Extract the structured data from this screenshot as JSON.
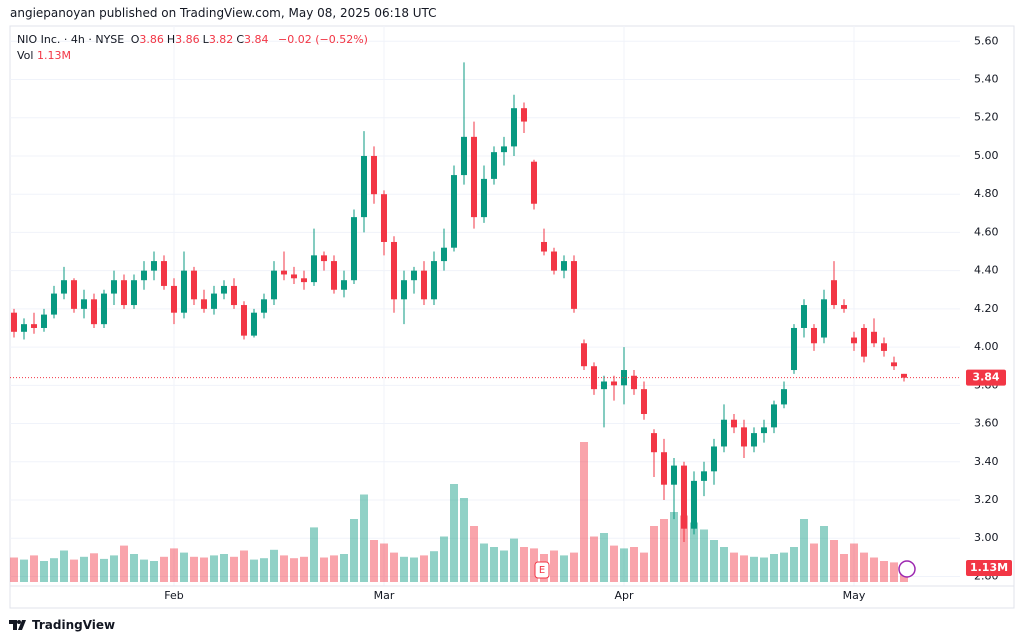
{
  "publisher": "angiepanoyan published on TradingView.com, May 08, 2025 06:18 UTC",
  "footer": "TradingView",
  "chart_data": {
    "type": "candlestick",
    "symbol": "NIO Inc. · 4h · NYSE",
    "ohlc": [
      {
        "label": "O",
        "value": 3.86
      },
      {
        "label": "H",
        "value": 3.86
      },
      {
        "label": "L",
        "value": 3.82
      },
      {
        "label": "C",
        "value": 3.84
      }
    ],
    "change": "−0.02 (−0.52%)",
    "volume_title": "Vol",
    "volume_label": "1.13M",
    "earnings_marker": "E",
    "last_price": 3.84,
    "up_color": "#089981",
    "down_color": "#f23645",
    "ylim": [
      2.75,
      5.68
    ],
    "yticks": [
      {
        "value": 2.8,
        "label": "2.80"
      },
      {
        "value": 3.0,
        "label": "3.00"
      },
      {
        "value": 3.2,
        "label": "3.20"
      },
      {
        "value": 3.4,
        "label": "3.40"
      },
      {
        "value": 3.6,
        "label": "3.60"
      },
      {
        "value": 3.8,
        "label": "3.80"
      },
      {
        "value": 4.0,
        "label": "4.00"
      },
      {
        "value": 4.2,
        "label": "4.20"
      },
      {
        "value": 4.4,
        "label": "4.40"
      },
      {
        "value": 4.6,
        "label": "4.60"
      },
      {
        "value": 4.8,
        "label": "4.80"
      },
      {
        "value": 5.0,
        "label": "5.00"
      },
      {
        "value": 5.2,
        "label": "5.20"
      },
      {
        "value": 5.4,
        "label": "5.40"
      },
      {
        "value": 5.6,
        "label": "5.60"
      }
    ],
    "xticks": [
      {
        "value": 16,
        "label": "Feb"
      },
      {
        "value": 37,
        "label": "Mar"
      },
      {
        "value": 61,
        "label": "Apr"
      },
      {
        "value": 84,
        "label": "May"
      }
    ],
    "grid": true,
    "candles": [
      [
        4.18,
        4.2,
        4.05,
        4.08
      ],
      [
        4.08,
        4.15,
        4.04,
        4.12
      ],
      [
        4.12,
        4.18,
        4.07,
        4.1
      ],
      [
        4.1,
        4.2,
        4.08,
        4.17
      ],
      [
        4.17,
        4.32,
        4.15,
        4.28
      ],
      [
        4.28,
        4.42,
        4.25,
        4.35
      ],
      [
        4.35,
        4.36,
        4.18,
        4.2
      ],
      [
        4.2,
        4.3,
        4.15,
        4.25
      ],
      [
        4.25,
        4.28,
        4.1,
        4.12
      ],
      [
        4.12,
        4.3,
        4.1,
        4.28
      ],
      [
        4.28,
        4.4,
        4.22,
        4.35
      ],
      [
        4.35,
        4.38,
        4.2,
        4.22
      ],
      [
        4.22,
        4.38,
        4.2,
        4.35
      ],
      [
        4.35,
        4.45,
        4.3,
        4.4
      ],
      [
        4.4,
        4.5,
        4.35,
        4.45
      ],
      [
        4.45,
        4.48,
        4.3,
        4.32
      ],
      [
        4.32,
        4.36,
        4.12,
        4.18
      ],
      [
        4.18,
        4.5,
        4.15,
        4.4
      ],
      [
        4.4,
        4.42,
        4.22,
        4.25
      ],
      [
        4.25,
        4.3,
        4.18,
        4.2
      ],
      [
        4.2,
        4.32,
        4.17,
        4.28
      ],
      [
        4.28,
        4.35,
        4.25,
        4.32
      ],
      [
        4.32,
        4.36,
        4.2,
        4.22
      ],
      [
        4.22,
        4.24,
        4.04,
        4.06
      ],
      [
        4.06,
        4.2,
        4.05,
        4.18
      ],
      [
        4.18,
        4.28,
        4.15,
        4.25
      ],
      [
        4.25,
        4.45,
        4.22,
        4.4
      ],
      [
        4.4,
        4.5,
        4.35,
        4.38
      ],
      [
        4.38,
        4.42,
        4.33,
        4.36
      ],
      [
        4.36,
        4.4,
        4.3,
        4.34
      ],
      [
        4.34,
        4.62,
        4.32,
        4.48
      ],
      [
        4.48,
        4.5,
        4.4,
        4.45
      ],
      [
        4.45,
        4.48,
        4.28,
        4.3
      ],
      [
        4.3,
        4.4,
        4.26,
        4.35
      ],
      [
        4.35,
        4.72,
        4.33,
        4.68
      ],
      [
        4.68,
        5.13,
        4.6,
        5.0
      ],
      [
        5.0,
        5.05,
        4.75,
        4.8
      ],
      [
        4.8,
        4.82,
        4.48,
        4.55
      ],
      [
        4.55,
        4.58,
        4.18,
        4.25
      ],
      [
        4.25,
        4.4,
        4.12,
        4.35
      ],
      [
        4.35,
        4.42,
        4.28,
        4.4
      ],
      [
        4.4,
        4.45,
        4.22,
        4.25
      ],
      [
        4.25,
        4.5,
        4.22,
        4.45
      ],
      [
        4.45,
        4.62,
        4.4,
        4.52
      ],
      [
        4.52,
        4.95,
        4.5,
        4.9
      ],
      [
        4.9,
        5.49,
        4.85,
        5.1
      ],
      [
        5.1,
        5.18,
        4.62,
        4.68
      ],
      [
        4.68,
        4.95,
        4.65,
        4.88
      ],
      [
        4.88,
        5.05,
        4.85,
        5.02
      ],
      [
        5.02,
        5.1,
        4.95,
        5.05
      ],
      [
        5.05,
        5.32,
        5.0,
        5.25
      ],
      [
        5.25,
        5.28,
        5.12,
        5.18
      ],
      [
        4.97,
        4.98,
        4.72,
        4.75
      ],
      [
        4.55,
        4.62,
        4.48,
        4.5
      ],
      [
        4.5,
        4.52,
        4.38,
        4.4
      ],
      [
        4.4,
        4.48,
        4.36,
        4.45
      ],
      [
        4.45,
        4.48,
        4.18,
        4.2
      ],
      [
        4.02,
        4.04,
        3.88,
        3.9
      ],
      [
        3.9,
        3.92,
        3.75,
        3.78
      ],
      [
        3.78,
        3.85,
        3.58,
        3.82
      ],
      [
        3.82,
        3.85,
        3.72,
        3.8
      ],
      [
        3.8,
        4.0,
        3.7,
        3.88
      ],
      [
        3.85,
        3.88,
        3.75,
        3.78
      ],
      [
        3.78,
        3.82,
        3.62,
        3.65
      ],
      [
        3.55,
        3.57,
        3.32,
        3.45
      ],
      [
        3.45,
        3.52,
        3.2,
        3.28
      ],
      [
        3.28,
        3.42,
        3.1,
        3.38
      ],
      [
        3.38,
        3.4,
        2.98,
        3.05
      ],
      [
        3.05,
        3.35,
        3.02,
        3.3
      ],
      [
        3.3,
        3.4,
        3.22,
        3.35
      ],
      [
        3.35,
        3.52,
        3.28,
        3.48
      ],
      [
        3.48,
        3.7,
        3.45,
        3.62
      ],
      [
        3.62,
        3.65,
        3.55,
        3.58
      ],
      [
        3.58,
        3.62,
        3.42,
        3.48
      ],
      [
        3.48,
        3.58,
        3.45,
        3.55
      ],
      [
        3.55,
        3.62,
        3.5,
        3.58
      ],
      [
        3.58,
        3.72,
        3.55,
        3.7
      ],
      [
        3.7,
        3.82,
        3.68,
        3.78
      ],
      [
        3.88,
        4.12,
        3.86,
        4.1
      ],
      [
        4.1,
        4.25,
        4.05,
        4.22
      ],
      [
        4.1,
        4.12,
        3.98,
        4.02
      ],
      [
        4.05,
        4.3,
        4.02,
        4.25
      ],
      [
        4.35,
        4.45,
        4.2,
        4.22
      ],
      [
        4.22,
        4.25,
        4.18,
        4.2
      ],
      [
        4.05,
        4.08,
        3.98,
        4.02
      ],
      [
        4.1,
        4.12,
        3.92,
        3.95
      ],
      [
        4.08,
        4.15,
        4.0,
        4.02
      ],
      [
        4.02,
        4.05,
        3.95,
        3.98
      ],
      [
        3.92,
        3.95,
        3.88,
        3.9
      ],
      [
        3.86,
        3.86,
        3.82,
        3.84
      ]
    ],
    "volume": [
      3.5,
      3.2,
      3.8,
      3.0,
      3.4,
      4.5,
      3.2,
      3.6,
      4.1,
      3.3,
      3.8,
      5.2,
      4.0,
      3.2,
      3.0,
      3.6,
      4.8,
      4.2,
      3.6,
      3.5,
      3.8,
      4.0,
      3.6,
      4.5,
      3.2,
      3.4,
      4.6,
      3.8,
      3.4,
      3.6,
      7.8,
      3.5,
      3.8,
      4.0,
      9.0,
      12.5,
      6.0,
      5.5,
      4.2,
      3.6,
      3.5,
      3.8,
      4.4,
      6.5,
      14.0,
      12.0,
      8.0,
      5.5,
      5.0,
      4.5,
      6.2,
      5.0,
      4.8,
      4.0,
      4.5,
      3.8,
      4.2,
      20.0,
      6.5,
      7.0,
      5.2,
      4.8,
      5.0,
      4.2,
      8.0,
      9.0,
      10.0,
      9.5,
      8.5,
      7.5,
      6.0,
      5.0,
      4.2,
      3.8,
      3.6,
      3.5,
      4.0,
      4.2,
      5.0,
      9.0,
      5.5,
      8.0,
      6.0,
      4.0,
      5.5,
      4.2,
      3.5,
      3.0,
      2.8,
      1.13
    ]
  }
}
